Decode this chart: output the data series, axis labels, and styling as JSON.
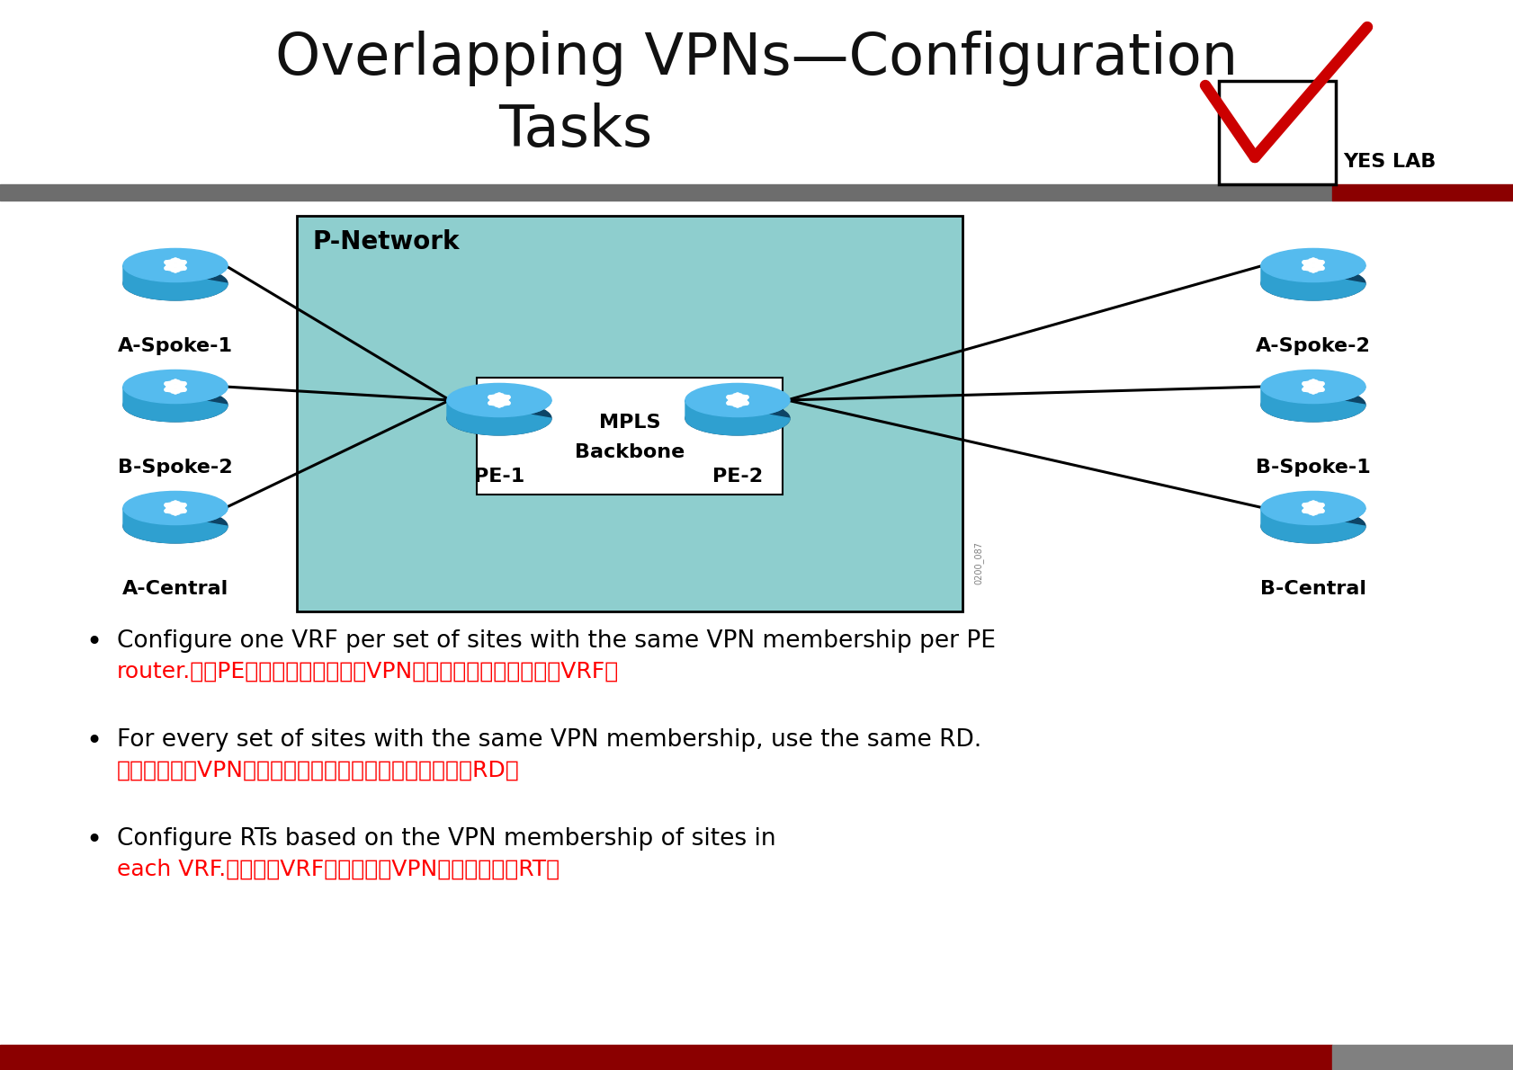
{
  "title_line1": "Overlapping VPNs—Configuration",
  "title_line2": "Tasks",
  "bg_color": "#ffffff",
  "header_bar_color": "#6d6d6d",
  "header_bar_red": "#8b0000",
  "footer_bar_color": "#8b0000",
  "footer_bar_gray": "#808080",
  "p_network_bg": "#8ecece",
  "p_network_border": "#000000",
  "router_body": "#2fa0d0",
  "router_top": "#55bbee",
  "router_bottom": "#1a7aaa",
  "router_shadow": "#0d4466",
  "yeslab_red": "#cc0000",
  "bullet1_black1": "Configure one VRF per set of sites with the same VPN membership per PE",
  "bullet1_black2": "router.",
  "bullet1_red": "每个PE路由器每个拥有相同VPN成员身份的站点配置一个VRF。",
  "bullet2_black1": "For every set of sites with the same VPN membership, use the same RD.",
  "bullet2_red": "对于具有相同VPN成员资格的每一组网站，请使用相同的RD。",
  "bullet3_black1": "Configure RTs based on the VPN membership of sites in",
  "bullet3_black2": "each VRF.",
  "bullet3_red": "根据每个VRF中的站点的VPN成员资格配置RT。"
}
